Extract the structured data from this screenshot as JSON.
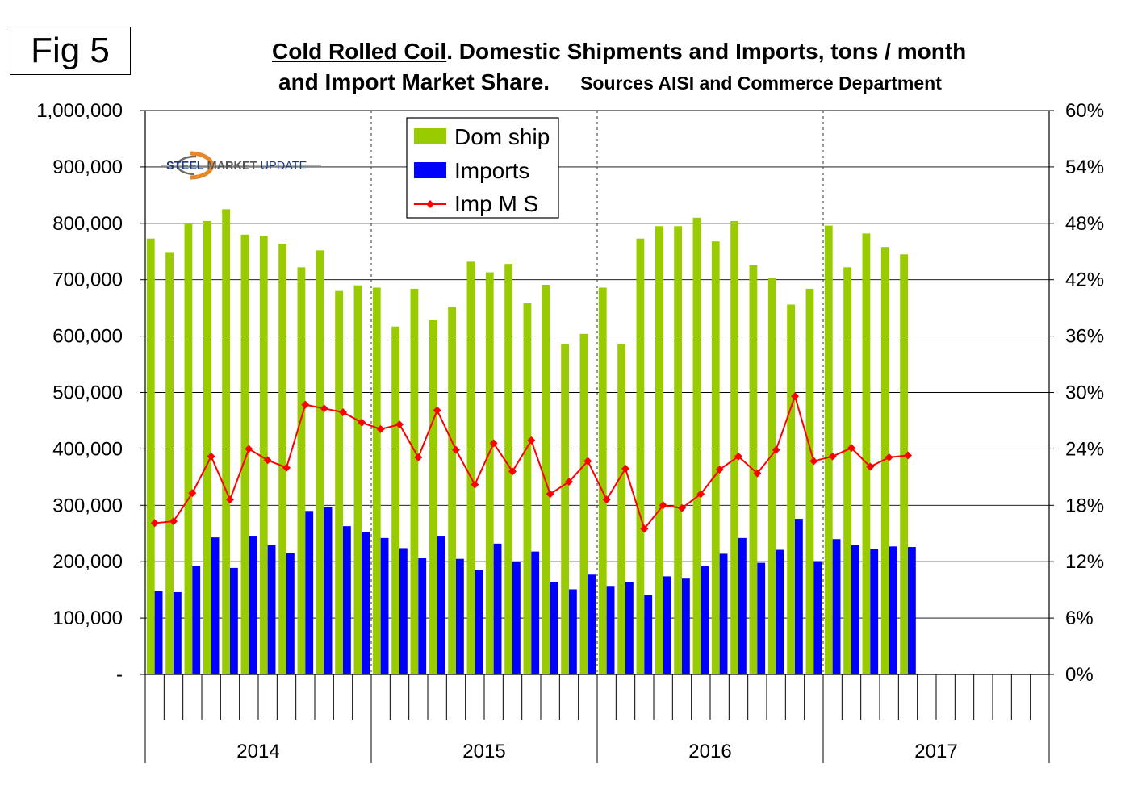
{
  "figure_label": "Fig 5",
  "title": {
    "underlined": "Cold Rolled Coil",
    "line1_rest": ". Domestic Shipments and Imports, tons / month",
    "line2": "and Import  Market Share.",
    "sources": "Sources AISI and Commerce Department"
  },
  "logo": {
    "part1": "STEEL ",
    "part2": "MARKET",
    "part3": " UPDATE"
  },
  "colors": {
    "dom": "#99cc00",
    "imp": "#0000ff",
    "ms": "#ff0000"
  },
  "chart_data": {
    "type": "bar",
    "title": "Cold Rolled Coil. Domestic Shipments and Imports, tons / month and Import Market Share.",
    "subtitle": "Sources AISI and Commerce Department",
    "xlabel": "",
    "ylabel": "tons / month",
    "ylim": [
      0,
      1000000
    ],
    "y2lim": [
      0,
      60
    ],
    "y_ticks": [
      "-",
      "100,000",
      "200,000",
      "300,000",
      "400,000",
      "500,000",
      "600,000",
      "700,000",
      "800,000",
      "900,000",
      "1,000,000"
    ],
    "y2_ticks": [
      "0%",
      "6%",
      "12%",
      "18%",
      "24%",
      "30%",
      "36%",
      "42%",
      "48%",
      "54%",
      "60%"
    ],
    "year_labels": [
      "2014",
      "2015",
      "2016",
      "2017"
    ],
    "months_per_year": 12,
    "legend_position": "top-center",
    "series": [
      {
        "name": "Dom ship",
        "type": "bar",
        "axis": "left",
        "values": [
          773000,
          749000,
          801000,
          804000,
          825000,
          780000,
          778000,
          764000,
          722000,
          752000,
          680000,
          690000,
          686000,
          617000,
          684000,
          628000,
          652000,
          732000,
          713000,
          728000,
          658000,
          691000,
          586000,
          604000,
          686000,
          586000,
          773000,
          795000,
          795000,
          810000,
          768000,
          804000,
          726000,
          703000,
          656000,
          684000,
          796000,
          722000,
          782000,
          758000,
          745000
        ]
      },
      {
        "name": "Imports",
        "type": "bar",
        "axis": "left",
        "values": [
          148000,
          146000,
          192000,
          243000,
          189000,
          246000,
          229000,
          215000,
          290000,
          297000,
          263000,
          252000,
          242000,
          224000,
          206000,
          246000,
          205000,
          185000,
          232000,
          200000,
          218000,
          164000,
          151000,
          177000,
          157000,
          164000,
          141000,
          174000,
          170000,
          192000,
          214000,
          242000,
          198000,
          221000,
          276000,
          201000,
          240000,
          229000,
          222000,
          227000,
          226000
        ]
      },
      {
        "name": "Imp M S",
        "type": "line",
        "axis": "right",
        "unit": "%",
        "values": [
          16.1,
          16.3,
          19.3,
          23.2,
          18.6,
          24.0,
          22.8,
          22.0,
          28.7,
          28.3,
          27.9,
          26.8,
          26.1,
          26.6,
          23.1,
          28.1,
          23.9,
          20.2,
          24.6,
          21.6,
          24.9,
          19.2,
          20.5,
          22.7,
          18.6,
          21.9,
          15.5,
          18.0,
          17.7,
          19.2,
          21.8,
          23.2,
          21.4,
          23.9,
          29.6,
          22.7,
          23.2,
          24.1,
          22.1,
          23.1,
          23.3
        ]
      }
    ]
  }
}
